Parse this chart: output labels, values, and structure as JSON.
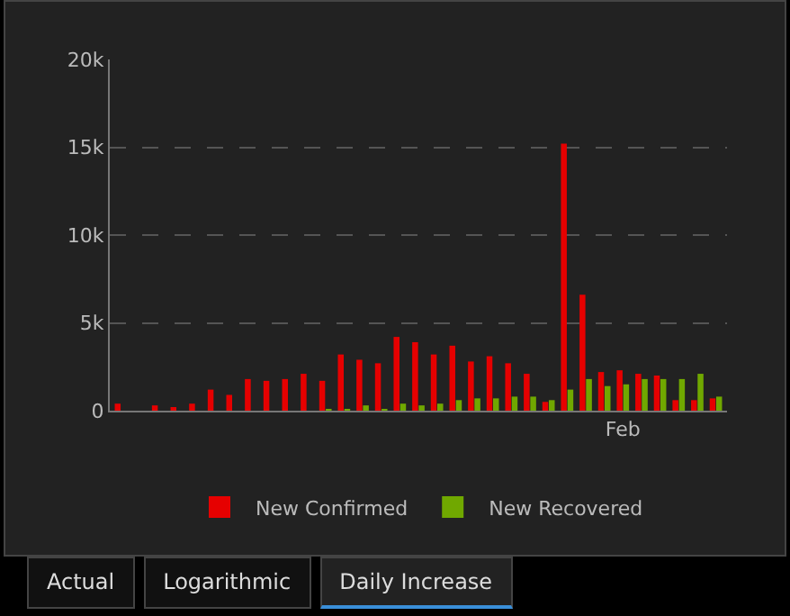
{
  "chart_data": {
    "type": "bar",
    "categories": [
      null,
      null,
      null,
      null,
      null,
      null,
      null,
      null,
      null,
      null,
      null,
      null,
      null,
      null,
      null,
      null,
      null,
      null,
      null,
      null,
      null,
      null,
      null,
      null,
      null,
      null,
      null,
      "Feb",
      null,
      null,
      null,
      null,
      null
    ],
    "series": [
      {
        "name": "New Confirmed",
        "color": "#e60000",
        "values": [
          400,
          0,
          300,
          200,
          400,
          1200,
          900,
          1800,
          1700,
          1800,
          2100,
          1700,
          3200,
          2900,
          2700,
          4200,
          3900,
          3200,
          3700,
          2800,
          3100,
          2700,
          2100,
          500,
          15200,
          6600,
          2200,
          2300,
          2100,
          2000,
          600,
          600,
          700
        ]
      },
      {
        "name": "New Recovered",
        "color": "#70a800",
        "values": [
          0,
          0,
          0,
          0,
          0,
          0,
          0,
          0,
          0,
          0,
          0,
          100,
          100,
          300,
          100,
          400,
          300,
          400,
          600,
          700,
          700,
          800,
          800,
          600,
          1200,
          1800,
          1400,
          1500,
          1800,
          1800,
          1800,
          2100,
          800
        ]
      }
    ],
    "ylim": [
      0,
      20000
    ],
    "yticks": [
      0,
      {
        "value": 5000,
        "label": "5k"
      },
      {
        "value": 10000,
        "label": "10k"
      },
      {
        "value": 15000,
        "label": "15k"
      },
      {
        "value": 20000,
        "label": "20k"
      }
    ],
    "grid": "y",
    "legend": "bottom",
    "annotations": [
      "Actual",
      "Logarithmic",
      "Daily Increase"
    ]
  }
}
